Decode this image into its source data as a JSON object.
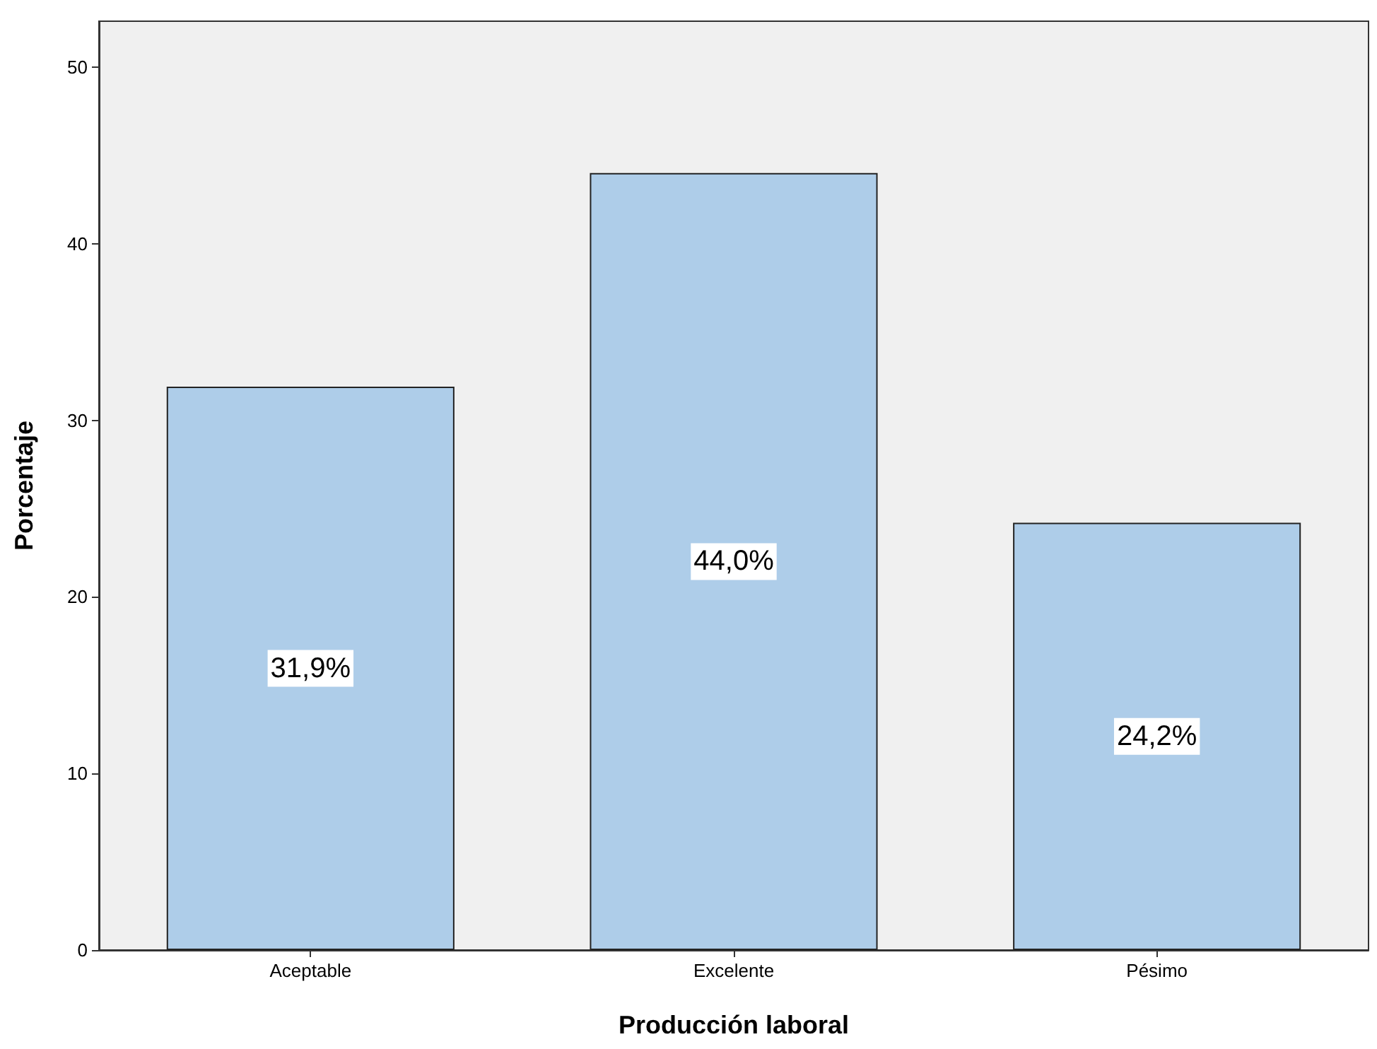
{
  "chart_data": {
    "type": "bar",
    "xlabel": "Producción laboral",
    "ylabel": "Porcentaje",
    "categories": [
      "Aceptable",
      "Excelente",
      "Pésimo"
    ],
    "values": [
      31.9,
      44.0,
      24.2
    ],
    "value_labels": [
      "31,9%",
      "44,0%",
      "24,2%"
    ],
    "color": "#aecde9",
    "ylim": [
      0,
      52.6
    ],
    "yticks": [
      0,
      10,
      20,
      30,
      40,
      50
    ],
    "grid": false
  }
}
